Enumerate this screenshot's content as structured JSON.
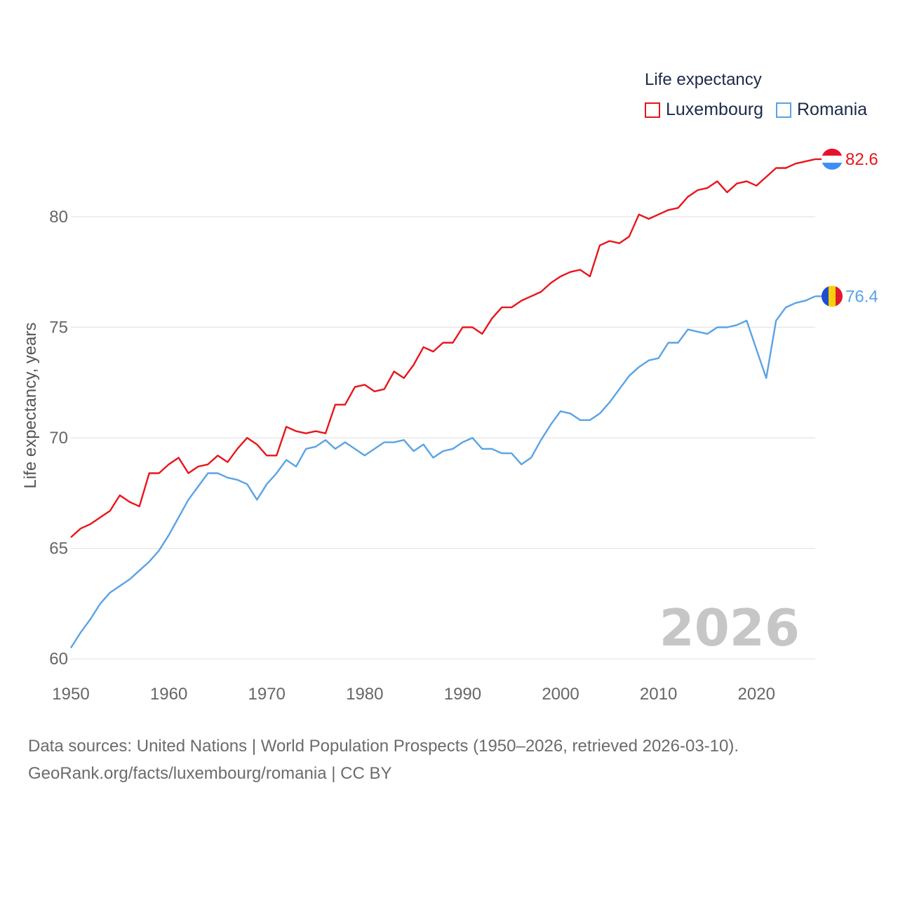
{
  "legend": {
    "title": "Life expectancy",
    "items": [
      {
        "label": "Luxembourg",
        "color": "#e8151b"
      },
      {
        "label": "Romania",
        "color": "#5aa3e5"
      }
    ]
  },
  "ylabel": "Life expectancy, years",
  "year_label": "2026",
  "source": {
    "line1": "Data sources: United Nations | World Population Prospects (1950–2026, retrieved 2026-03-10).",
    "line2": "GeoRank.org/facts/luxembourg/romania | CC BY"
  },
  "chart_data": {
    "type": "line",
    "title": "Life expectancy",
    "xlabel": "",
    "ylabel": "Life expectancy, years",
    "xlim": [
      1950,
      2026
    ],
    "ylim": [
      59.5,
      83.2
    ],
    "xticks": [
      1950,
      1960,
      1970,
      1980,
      1990,
      2000,
      2010,
      2020
    ],
    "yticks": [
      60,
      65,
      70,
      75,
      80
    ],
    "grid": true,
    "legend_position": "top-right",
    "x": [
      1950,
      1951,
      1952,
      1953,
      1954,
      1955,
      1956,
      1957,
      1958,
      1959,
      1960,
      1961,
      1962,
      1963,
      1964,
      1965,
      1966,
      1967,
      1968,
      1969,
      1970,
      1971,
      1972,
      1973,
      1974,
      1975,
      1976,
      1977,
      1978,
      1979,
      1980,
      1981,
      1982,
      1983,
      1984,
      1985,
      1986,
      1987,
      1988,
      1989,
      1990,
      1991,
      1992,
      1993,
      1994,
      1995,
      1996,
      1997,
      1998,
      1999,
      2000,
      2001,
      2002,
      2003,
      2004,
      2005,
      2006,
      2007,
      2008,
      2009,
      2010,
      2011,
      2012,
      2013,
      2014,
      2015,
      2016,
      2017,
      2018,
      2019,
      2020,
      2021,
      2022,
      2023,
      2024,
      2025,
      2026
    ],
    "series": [
      {
        "name": "Luxembourg",
        "color": "#e8151b",
        "end_label": "82.6",
        "values": [
          65.5,
          65.9,
          66.1,
          66.4,
          66.7,
          67.4,
          67.1,
          66.9,
          68.4,
          68.4,
          68.8,
          69.1,
          68.4,
          68.7,
          68.8,
          69.2,
          68.9,
          69.5,
          70.0,
          69.7,
          69.2,
          69.2,
          70.5,
          70.3,
          70.2,
          70.3,
          70.2,
          71.5,
          71.5,
          72.3,
          72.4,
          72.1,
          72.2,
          73.0,
          72.7,
          73.3,
          74.1,
          73.9,
          74.3,
          74.3,
          75.0,
          75.0,
          74.7,
          75.4,
          75.9,
          75.9,
          76.2,
          76.4,
          76.6,
          77.0,
          77.3,
          77.5,
          77.6,
          77.3,
          78.7,
          78.9,
          78.8,
          79.1,
          80.1,
          79.9,
          80.1,
          80.3,
          80.4,
          80.9,
          81.2,
          81.3,
          81.6,
          81.1,
          81.5,
          81.6,
          81.4,
          81.8,
          82.2,
          82.2,
          82.4,
          82.5,
          82.6
        ]
      },
      {
        "name": "Romania",
        "color": "#5aa3e5",
        "end_label": "76.4",
        "values": [
          60.5,
          61.2,
          61.8,
          62.5,
          63.0,
          63.3,
          63.6,
          64.0,
          64.4,
          64.9,
          65.6,
          66.4,
          67.2,
          67.8,
          68.4,
          68.4,
          68.2,
          68.1,
          67.9,
          67.2,
          67.9,
          68.4,
          69.0,
          68.7,
          69.5,
          69.6,
          69.9,
          69.5,
          69.8,
          69.5,
          69.2,
          69.5,
          69.8,
          69.8,
          69.9,
          69.4,
          69.7,
          69.1,
          69.4,
          69.5,
          69.8,
          70.0,
          69.5,
          69.5,
          69.3,
          69.3,
          68.8,
          69.1,
          69.9,
          70.6,
          71.2,
          71.1,
          70.8,
          70.8,
          71.1,
          71.6,
          72.2,
          72.8,
          73.2,
          73.5,
          73.6,
          74.3,
          74.3,
          74.9,
          74.8,
          74.7,
          75.0,
          75.0,
          75.1,
          75.3,
          74.0,
          72.7,
          75.3,
          75.9,
          76.1,
          76.2,
          76.4
        ]
      }
    ]
  }
}
